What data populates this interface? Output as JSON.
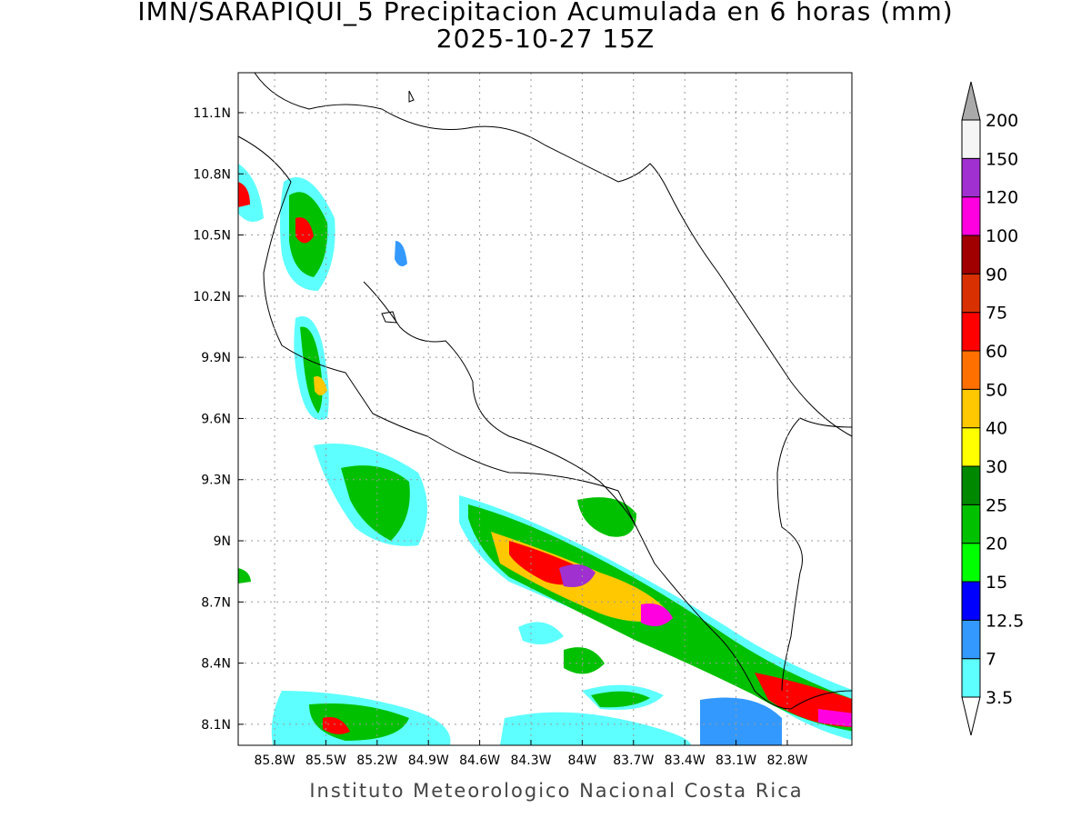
{
  "title": "IMN/SARAPIQUI_5 Precipitacion Acumulada en 6 horas (mm)",
  "subtitle": "2025-10-27 15Z",
  "map": {
    "lat_range": [
      7.997,
      11.296
    ],
    "lon_range": [
      -86.013,
      -82.422
    ],
    "lat_ticks": [
      {
        "value": 8.1,
        "label": "8.1N"
      },
      {
        "value": 8.4,
        "label": "8.4N"
      },
      {
        "value": 8.7,
        "label": "8.7N"
      },
      {
        "value": 9,
        "label": "9N"
      },
      {
        "value": 9.3,
        "label": "9.3N"
      },
      {
        "value": 9.6,
        "label": "9.6N"
      },
      {
        "value": 9.9,
        "label": "9.9N"
      },
      {
        "value": 10.2,
        "label": "10.2N"
      },
      {
        "value": 10.5,
        "label": "10.5N"
      },
      {
        "value": 10.8,
        "label": "10.8N"
      },
      {
        "value": 11.1,
        "label": "11.1N"
      }
    ],
    "lon_ticks": [
      {
        "value": -85.8,
        "label": "85.8W"
      },
      {
        "value": -85.5,
        "label": "85.5W"
      },
      {
        "value": -85.2,
        "label": "85.2W"
      },
      {
        "value": -84.9,
        "label": "84.9W"
      },
      {
        "value": -84.6,
        "label": "84.6W"
      },
      {
        "value": -84.3,
        "label": "84.3W"
      },
      {
        "value": -84,
        "label": "84W"
      },
      {
        "value": -83.7,
        "label": "83.7W"
      },
      {
        "value": -83.4,
        "label": "83.4W"
      },
      {
        "value": -83.1,
        "label": "83.1W"
      },
      {
        "value": -82.8,
        "label": "82.8W"
      }
    ],
    "grid": true
  },
  "colorbar": {
    "levels": [
      3.5,
      7,
      12.5,
      15,
      20,
      25,
      30,
      40,
      50,
      60,
      75,
      90,
      100,
      120,
      150,
      200
    ],
    "colors": [
      "#5effff",
      "#3399ff",
      "#0000ff",
      "#00ff00",
      "#00c000",
      "#008800",
      "#ffff00",
      "#ffc800",
      "#ff7000",
      "#ff0000",
      "#d83000",
      "#a00000",
      "#ff00e0",
      "#a030d0",
      "#f5f5f5"
    ],
    "under_color": "#ffffff",
    "over_color": "#aaaaaa"
  },
  "footer": "Instituto Meteorologico Nacional Costa Rica"
}
